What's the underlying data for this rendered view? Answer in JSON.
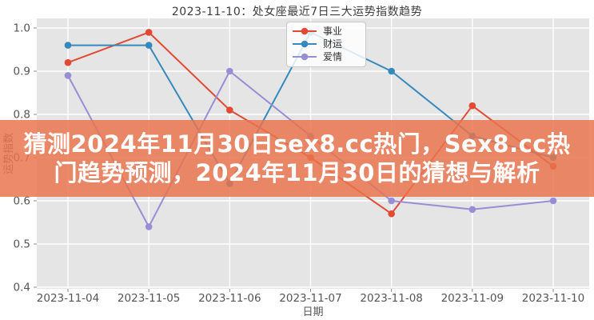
{
  "page": {
    "background": "#ffffff",
    "plot_background": "#E5E5E5",
    "grid_color": "#ffffff",
    "tick_text_color": "#555555",
    "title_text_color": "#3c3c3c"
  },
  "banner": {
    "line1": "猜测2024年11月30日sex8.cc热门，Sex8.cc热",
    "line2": "门趋势预测，2024年11月30日的猜想与解析",
    "full_text": "猜测2024年11月30日sex8.cc热门，Sex8.cc热门趋势预测，2024年11月30日的猜想与解析",
    "bg_color": "#EA734C",
    "text_color": "#FFFFFF"
  },
  "chart_data": {
    "type": "line",
    "title": "2023-11-10：处女座最近7日三大运势指数趋势",
    "xlabel": "日期",
    "ylabel": "运势指数",
    "categories": [
      "2023-11-04",
      "2023-11-05",
      "2023-11-06",
      "2023-11-07",
      "2023-11-08",
      "2023-11-09",
      "2023-11-10"
    ],
    "series": [
      {
        "name": "事业",
        "color": "#E24A33",
        "marker": "circle",
        "values": [
          0.92,
          0.99,
          0.81,
          0.7,
          0.57,
          0.82,
          0.68
        ]
      },
      {
        "name": "财运",
        "color": "#348ABD",
        "marker": "circle",
        "values": [
          0.96,
          0.96,
          0.64,
          0.99,
          0.9,
          0.75,
          0.7
        ]
      },
      {
        "name": "爱情",
        "color": "#988ED5",
        "marker": "circle",
        "values": [
          0.89,
          0.54,
          0.9,
          0.75,
          0.6,
          0.58,
          0.6
        ]
      }
    ],
    "yticks": [
      "1.0",
      "0.9",
      "0.8",
      "0.7",
      "0.6",
      "0.5",
      "0.4"
    ],
    "ytick_values": [
      1.0,
      0.9,
      0.8,
      0.7,
      0.6,
      0.5,
      0.4
    ],
    "ylim": [
      0.396,
      1.022
    ],
    "grid": true,
    "legend_position": "upper center"
  }
}
